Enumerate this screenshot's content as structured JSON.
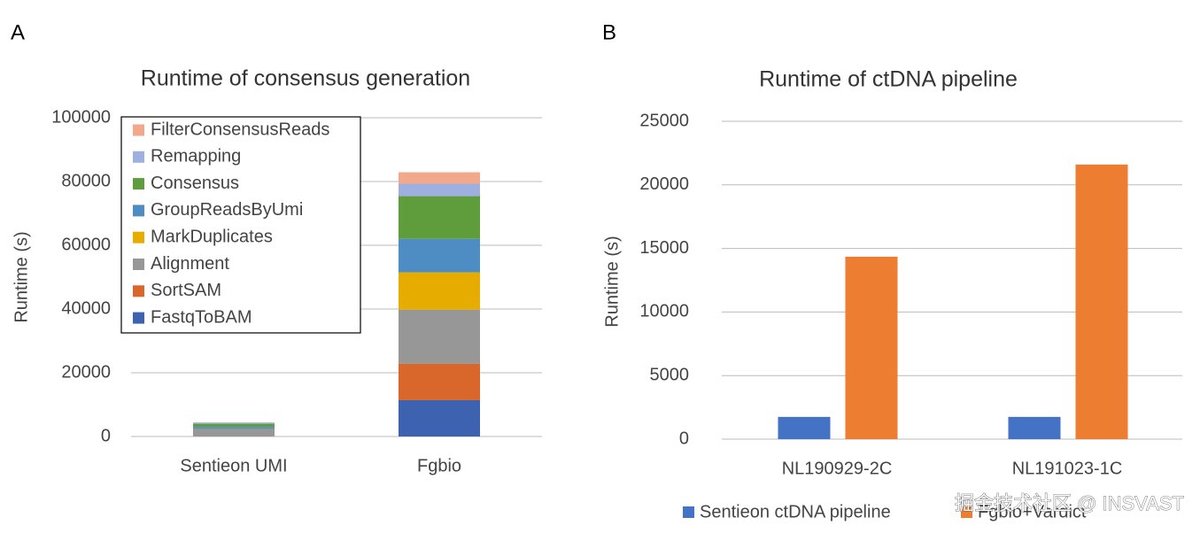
{
  "chart_data": [
    {
      "type": "stacked_bar",
      "panel_label": "A",
      "title": "Runtime of consensus generation",
      "y_label": "Runtime (s)",
      "categories": [
        "Sentieon UMI",
        "Fgbio"
      ],
      "series": [
        {
          "name": "FastqToBAM",
          "color": "#3d62b0",
          "values": [
            0,
            11400
          ]
        },
        {
          "name": "SortSAM",
          "color": "#d9662a",
          "values": [
            0,
            11400
          ]
        },
        {
          "name": "Alignment",
          "color": "#979797",
          "values": [
            2500,
            17000
          ]
        },
        {
          "name": "MarkDuplicates",
          "color": "#e6ac00",
          "values": [
            0,
            11700
          ]
        },
        {
          "name": "GroupReadsByUmi",
          "color": "#4e8cc4",
          "values": [
            500,
            10500
          ]
        },
        {
          "name": "Consensus",
          "color": "#5e9c3c",
          "values": [
            1000,
            13400
          ]
        },
        {
          "name": "Remapping",
          "color": "#9eb0e0",
          "values": [
            400,
            3900
          ]
        },
        {
          "name": "FilterConsensusReads",
          "color": "#f2a88a",
          "values": [
            0,
            3600
          ]
        }
      ],
      "ylim": [
        0,
        100000
      ],
      "yticks": [
        0,
        20000,
        40000,
        60000,
        80000,
        100000
      ],
      "grid": true,
      "legend": "inside-top-left"
    },
    {
      "type": "grouped_bar",
      "panel_label": "B",
      "title": "Runtime of ctDNA pipeline",
      "y_label": "Runtime (s)",
      "categories": [
        "NL190929-2C",
        "NL191023-1C"
      ],
      "series": [
        {
          "name": "Sentieon ctDNA pipeline",
          "color": "#4472c4",
          "values": [
            1750,
            1750
          ]
        },
        {
          "name": "Fgbio+Vardict",
          "color": "#ed7d31",
          "values": [
            14350,
            21600
          ]
        }
      ],
      "ylim": [
        0,
        25000
      ],
      "yticks": [
        0,
        5000,
        10000,
        15000,
        20000,
        25000
      ],
      "grid": true,
      "legend": "bottom"
    }
  ],
  "watermark": "掘金技术社区 @ INSVAST"
}
